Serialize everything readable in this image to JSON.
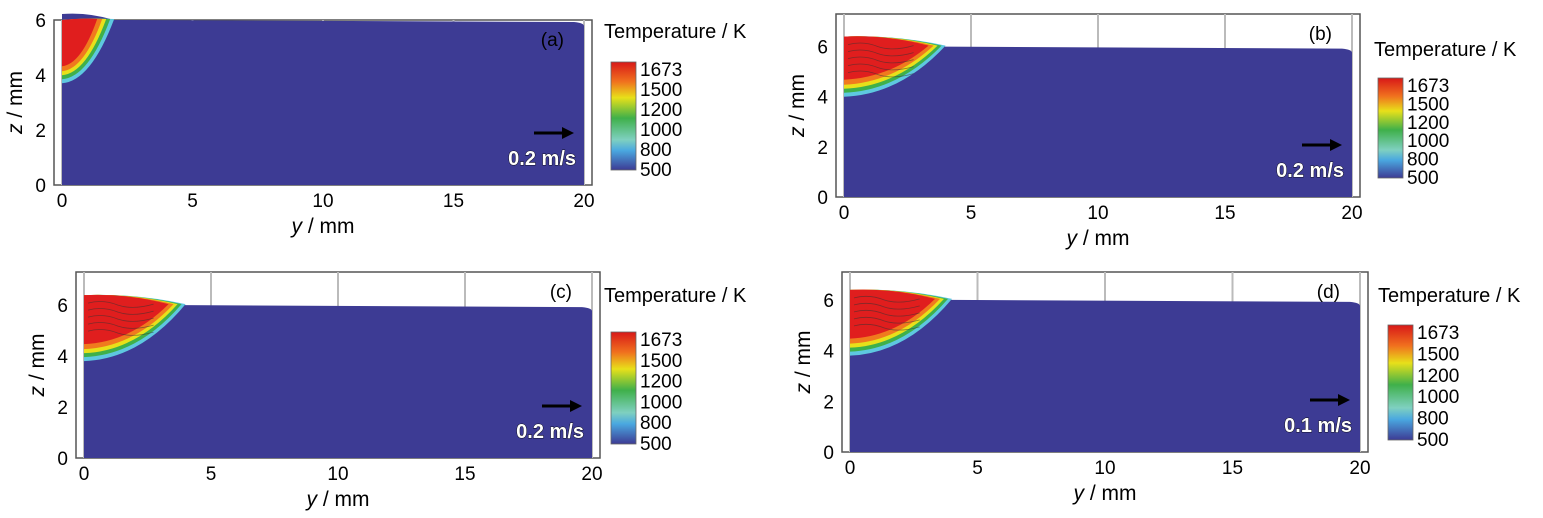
{
  "colorbar": {
    "title": "Temperature / K",
    "ticks": [
      "1673",
      "1500",
      "1200",
      "1000",
      "800",
      "500"
    ]
  },
  "colors": {
    "background_field": "#3d3b94",
    "hot": "#e01e1e",
    "orange": "#f07a1e",
    "yellow": "#e8e01a",
    "green": "#3fb04a",
    "cyan": "#5ec8e0",
    "frame": "#555555",
    "grid": "#bbbbbb"
  },
  "panels": [
    {
      "label": "(a)",
      "velocity_label": "0.2 m/s",
      "xlabel_y": "y",
      "xlabel_unit": " / mm",
      "ylabel_z": "z",
      "ylabel_unit": " / mm",
      "xticks": [
        "0",
        "5",
        "10",
        "15",
        "20"
      ],
      "yticks": [
        "0",
        "2",
        "4",
        "6"
      ]
    },
    {
      "label": "(b)",
      "velocity_label": "0.2 m/s",
      "xlabel_y": "y",
      "xlabel_unit": " / mm",
      "ylabel_z": "z",
      "ylabel_unit": " / mm",
      "xticks": [
        "0",
        "5",
        "10",
        "15",
        "20"
      ],
      "yticks": [
        "0",
        "2",
        "4",
        "6"
      ]
    },
    {
      "label": "(c)",
      "velocity_label": "0.2 m/s",
      "xlabel_y": "y",
      "xlabel_unit": " / mm",
      "ylabel_z": "z",
      "ylabel_unit": " / mm",
      "xticks": [
        "0",
        "5",
        "10",
        "15",
        "20"
      ],
      "yticks": [
        "0",
        "2",
        "4",
        "6"
      ]
    },
    {
      "label": "(d)",
      "velocity_label": "0.1 m/s",
      "xlabel_y": "y",
      "xlabel_unit": " / mm",
      "ylabel_z": "z",
      "ylabel_unit": " / mm",
      "xticks": [
        "0",
        "5",
        "10",
        "15",
        "20"
      ],
      "yticks": [
        "0",
        "2",
        "4",
        "6"
      ]
    }
  ],
  "chart_data": [
    {
      "type": "heatmap",
      "label": "(a)",
      "x_range": [
        0,
        20
      ],
      "y_range": [
        0,
        6
      ],
      "x_ticks": [
        0,
        5,
        10,
        15,
        20
      ],
      "y_ticks": [
        0,
        2,
        4,
        6
      ],
      "colorbar_range": [
        500,
        1673
      ],
      "colorbar_ticks": [
        500,
        800,
        1000,
        1200,
        1500,
        1673
      ],
      "surface_height_mm": 6.0,
      "hot_zone_extent_y_mm": 2.0,
      "hot_zone_bottom_z_mm": 3.7,
      "velocity_scale_m_per_s": 0.2
    },
    {
      "type": "heatmap",
      "label": "(b)",
      "x_range": [
        0,
        20
      ],
      "y_range": [
        0,
        7
      ],
      "x_ticks": [
        0,
        5,
        10,
        15,
        20
      ],
      "y_ticks": [
        0,
        2,
        4,
        6
      ],
      "colorbar_range": [
        500,
        1673
      ],
      "colorbar_ticks": [
        500,
        800,
        1000,
        1200,
        1500,
        1673
      ],
      "surface_height_mm": 6.0,
      "hot_zone_extent_y_mm": 4.0,
      "hot_zone_bottom_z_mm": 4.0,
      "velocity_scale_m_per_s": 0.2
    },
    {
      "type": "heatmap",
      "label": "(c)",
      "x_range": [
        0,
        20
      ],
      "y_range": [
        0,
        7
      ],
      "x_ticks": [
        0,
        5,
        10,
        15,
        20
      ],
      "y_ticks": [
        0,
        2,
        4,
        6
      ],
      "colorbar_range": [
        500,
        1673
      ],
      "colorbar_ticks": [
        500,
        800,
        1000,
        1200,
        1500,
        1673
      ],
      "surface_height_mm": 6.0,
      "hot_zone_extent_y_mm": 4.0,
      "hot_zone_bottom_z_mm": 3.8,
      "velocity_scale_m_per_s": 0.2
    },
    {
      "type": "heatmap",
      "label": "(d)",
      "x_range": [
        0,
        20
      ],
      "y_range": [
        0,
        7
      ],
      "x_ticks": [
        0,
        5,
        10,
        15,
        20
      ],
      "y_ticks": [
        0,
        2,
        4,
        6
      ],
      "colorbar_range": [
        500,
        1673
      ],
      "colorbar_ticks": [
        500,
        800,
        1000,
        1200,
        1500,
        1673
      ],
      "surface_height_mm": 6.0,
      "hot_zone_extent_y_mm": 4.0,
      "hot_zone_bottom_z_mm": 3.8,
      "velocity_scale_m_per_s": 0.1
    }
  ]
}
